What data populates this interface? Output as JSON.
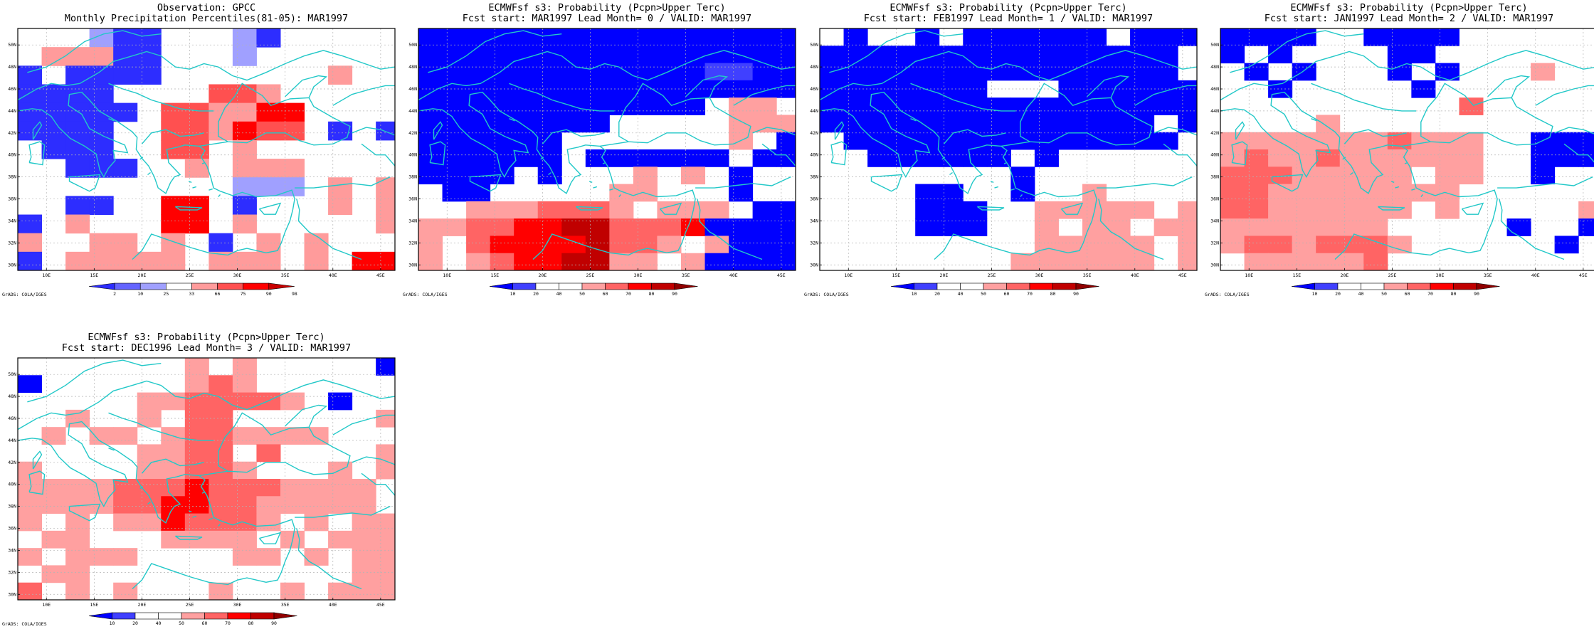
{
  "colors": {
    "scale_obs": [
      "#2d2dff",
      "#6464ff",
      "#a0a0ff",
      "#ffffff",
      "#ff9b9b",
      "#ff5050",
      "#ff0000",
      "#c80000"
    ],
    "scale_fcst": [
      "#0000ff",
      "#4040ff",
      "#ffffff",
      "#ffffff",
      "#ffa0a0",
      "#ff6464",
      "#ff0000",
      "#c00000",
      "#900000"
    ],
    "coast": "#22c8c8",
    "grid": "#b4b4b4"
  },
  "axes": {
    "lat_labels": [
      "30N",
      "32N",
      "34N",
      "36N",
      "38N",
      "40N",
      "42N",
      "44N",
      "46N",
      "48N",
      "50N"
    ],
    "lon_labels": [
      "10E",
      "15E",
      "20E",
      "25E",
      "30E",
      "35E",
      "40E",
      "45E"
    ]
  },
  "grads_label": "GrADS: COLA/IGES",
  "panels": [
    {
      "title1": "Observation: GPCC",
      "title2": "Monthly Precipitation Percentiles(81-05): MAR1997",
      "colorbar_labels": [
        "2",
        "10",
        "25",
        "33",
        "66",
        "75",
        "90",
        "98"
      ],
      "scale": "obs",
      "chart_data": {
        "type": "heatmap",
        "x_range_deg_e": [
          7,
          46.5
        ],
        "y_range_deg_n": [
          29.5,
          51.5
        ],
        "grid_cell_deg": 2.5,
        "rows_order": "north_to_south",
        "cells": [
          "...211...21.....",
          ".55511...2......",
          "1.1111.......5..",
          "1111....665.....",
          "11111.665577....",
          "1111..665766.1.1",
          ".111..66.5......",
          "..111..5.555....",
          ".........222.5.5",
          "..11..77.1...5.5",
          "1.5...77.5.....5",
          "5..55.5.1.5.5...",
          "1.55555.555.5.77"
        ]
      }
    },
    {
      "title1": "ECMWFsf s3: Probability (Pcpn>Upper Terc)",
      "title2": "Fcst start: MAR1997  Lead Month= 0 / VALID: MAR1997",
      "colorbar_labels": [
        "10",
        "20",
        "40",
        "50",
        "60",
        "70",
        "80",
        "90"
      ],
      "scale": "fcst",
      "chart_data": {
        "type": "heatmap",
        "x_range_deg_e": [
          7,
          46.5
        ],
        "y_range_deg_n": [
          29.5,
          51.5
        ],
        "grid_cell_deg": 2.5,
        "rows_order": "north_to_south",
        "cells": [
          "0000000000000000",
          "0000000000000000",
          "0000000000001100",
          "0000000000000000",
          "000000000000.55.",
          "00000000.....555",
          "000000.......5.0",
          "000000.000000.00",
          "0000.0...5.5.0..",
          ".00.....55...0..",
          "..5556665.555.00",
          "5566778866670000",
          "5.677778665.5000",
          "5.56778855.50000"
        ]
      }
    },
    {
      "title1": "ECMWFsf s3: Probability (Pcpn>Upper Terc)",
      "title2": "Fcst start: FEB1997  Lead Month= 1 / VALID: MAR1997",
      "colorbar_labels": [
        "10",
        "20",
        "40",
        "50",
        "60",
        "70",
        "80",
        "90"
      ],
      "scale": "fcst",
      "chart_data": {
        "type": "heatmap",
        "x_range_deg_e": [
          7,
          46.5
        ],
        "y_range_deg_n": [
          29.5,
          51.5
        ],
        "grid_cell_deg": 2.5,
        "rows_order": "north_to_south",
        "cells": [
          ".0..0.000000.000",
          "000000000000000.",
          "000000000000000.",
          "0000000...000000",
          "0000000000000000",
          "00000000000000.0",
          ".00000000000000.",
          "..000000.0......",
          "........0.......",
          "....00..0..5....",
          "....000..55555.5",
          "....000..5.55.55",
          ".........55555.5",
          "........555555.5"
        ]
      }
    },
    {
      "title1": "ECMWFsf s3: Probability (Pcpn>Upper Terc)",
      "title2": "Fcst start: JAN1997  Lead Month= 2 / VALID: MAR1997",
      "colorbar_labels": [
        "10",
        "20",
        "40",
        "50",
        "60",
        "70",
        "80",
        "90"
      ],
      "scale": "fcst",
      "chart_data": {
        "type": "heatmap",
        "x_range_deg_e": [
          7,
          46.5
        ],
        "y_range_deg_n": [
          29.5,
          51.5
        ],
        "grid_cell_deg": 2.5,
        "rows_order": "north_to_south",
        "cells": [
          "0000..0000......",
          "0.0....00.......",
          ".0.0...0.0...5..",
          "..0.....0.......",
          "..........6.....",
          "....5...........",
          "55555556555..000",
          "56556555555..000",
          "66655555.55..0..",
          "6655555555......",
          "66555555.5.....5",
          "5555555.....0..0",
          "56656665......0.",
          ".555556........."
        ]
      }
    },
    {
      "title1": "ECMWFsf s3: Probability (Pcpn>Upper Terc)",
      "title2": "Fcst start: DEC1996  Lead Month= 3 / VALID: MAR1997",
      "colorbar_labels": [
        "10",
        "20",
        "40",
        "50",
        "60",
        "70",
        "80",
        "90"
      ],
      "scale": "fcst",
      "chart_data": {
        "type": "heatmap",
        "x_range_deg_e": [
          7,
          46.5
        ],
        "y_range_deg_n": [
          29.5,
          51.5
        ],
        "grid_cell_deg": 2.5,
        "rows_order": "north_to_south",
        "cells": [
          ".......5.5.....0",
          "0......565......",
          ".....5566665.0..",
          "..5..5.66......5",
          ".5.55.5665555...",
          ".....5566.6....5",
          "5....55665...5.5",
          "555566676665555.",
          "555566776655555.",
          "5.5.5576665.5.55",
          ".55...5555.5.555",
          "5.555....55.5.55",
          ".55...........55",
          "6.5.5...5..5.555"
        ]
      }
    }
  ]
}
